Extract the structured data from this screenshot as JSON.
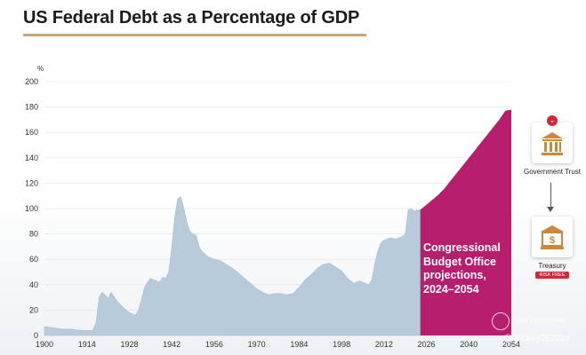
{
  "chart_data": {
    "type": "area",
    "title": "US Federal Debt as a Percentage of GDP",
    "ylabel": "%",
    "ylim": [
      0,
      200
    ],
    "xlim": [
      1900,
      2054
    ],
    "yticks": [
      0,
      20,
      40,
      60,
      80,
      100,
      120,
      140,
      160,
      180,
      200
    ],
    "xticks": [
      1900,
      1914,
      1928,
      1942,
      1956,
      1970,
      1984,
      1998,
      2012,
      2026,
      2040,
      2054
    ],
    "grid": "horizontal",
    "historical": {
      "x": [
        1900,
        1903,
        1906,
        1909,
        1912,
        1914,
        1916,
        1917,
        1918,
        1919,
        1920,
        1921,
        1922,
        1924,
        1926,
        1928,
        1930,
        1931,
        1932,
        1933,
        1934,
        1935,
        1936,
        1938,
        1939,
        1940,
        1941,
        1942,
        1943,
        1944,
        1945,
        1946,
        1947,
        1948,
        1949,
        1950,
        1951,
        1952,
        1954,
        1956,
        1958,
        1960,
        1962,
        1964,
        1966,
        1968,
        1970,
        1972,
        1974,
        1976,
        1978,
        1980,
        1982,
        1984,
        1986,
        1988,
        1990,
        1992,
        1994,
        1996,
        1998,
        2000,
        2002,
        2004,
        2006,
        2007,
        2008,
        2009,
        2010,
        2011,
        2012,
        2013,
        2014,
        2016,
        2018,
        2019,
        2020,
        2021,
        2022,
        2023,
        2024
      ],
      "y": [
        7,
        6,
        5,
        5,
        4,
        4,
        4,
        10,
        30,
        34,
        32,
        29,
        34,
        27,
        22,
        18,
        16,
        20,
        28,
        38,
        42,
        45,
        44,
        42,
        46,
        45,
        50,
        70,
        94,
        108,
        109,
        100,
        89,
        82,
        80,
        79,
        70,
        66,
        62,
        60,
        59,
        56,
        53,
        49,
        45,
        41,
        37,
        34,
        32,
        33,
        33,
        32,
        33,
        38,
        44,
        48,
        53,
        56,
        57,
        54,
        51,
        45,
        41,
        43,
        41,
        40,
        44,
        57,
        67,
        73,
        75,
        76,
        77,
        76,
        78,
        80,
        99,
        100,
        98,
        99,
        99
      ]
    },
    "projection": {
      "label": "Congressional Budget Office projections, 2024–2054",
      "x": [
        2024,
        2026,
        2028,
        2030,
        2032,
        2034,
        2036,
        2038,
        2040,
        2042,
        2044,
        2046,
        2048,
        2050,
        2052,
        2054
      ],
      "y": [
        99,
        103,
        107,
        111,
        116,
        122,
        128,
        134,
        140,
        146,
        152,
        158,
        164,
        170,
        177,
        178
      ]
    },
    "colors": {
      "historical_fill": "#b8cbdb",
      "projection_fill": "#b81e6e",
      "axis_text": "#333333",
      "grid": "#dfe4e8"
    }
  },
  "side_panel": {
    "government_trust_label": "Government Trust",
    "treasury_label": "Treasury",
    "risk_free_label": "RISK FREE",
    "badge_icon": "chevron-down-icon",
    "top_icon": "government-building-icon",
    "bottom_icon": "treasury-dollar-icon"
  },
  "watermark": {
    "community": "Tiger Community",
    "handle": "@Mickey082024"
  }
}
